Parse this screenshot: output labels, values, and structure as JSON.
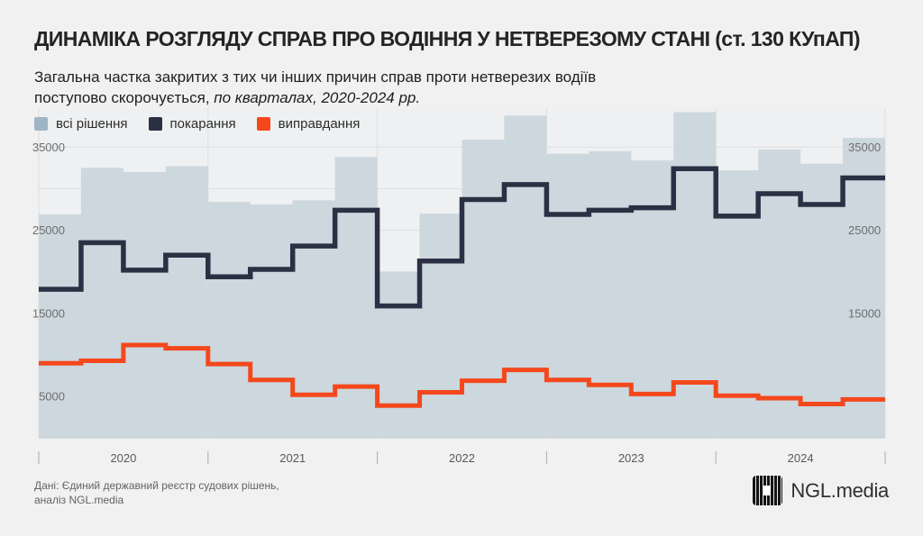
{
  "header": {
    "title": "ДИНАМІКА РОЗГЛЯДУ СПРАВ ПРО ВОДІННЯ У НЕТВЕРЕЗОМУ СТАНІ (ст. 130 КУпАП)",
    "subtitle_line1": "Загальна частка закритих з тих чи інших причин справ проти нетверезих водіїв",
    "subtitle_line2_regular": "поступово скорочується, ",
    "subtitle_line2_italic": "по кварталах, 2020-2024 рр."
  },
  "legend": {
    "items": [
      {
        "label": "всі рішення",
        "color": "#9db5c4"
      },
      {
        "label": "покарання",
        "color": "#2b3044"
      },
      {
        "label": "виправдання",
        "color": "#f4481c"
      }
    ]
  },
  "footer": {
    "source_line1": "Дані: Єдиний державний реєстр судових рішень,",
    "source_line2": "аналіз NGL.media",
    "logo_text": "NGL.media"
  },
  "chart_data": {
    "type": "area",
    "title": "Динаміка розгляду справ про водіння у нетверезому стані (ст. 130 КУпАП)",
    "xlabel": "",
    "ylabel": "",
    "ylim": [
      0,
      40000
    ],
    "gridline_step": 5000,
    "yticks_left": [
      35000,
      25000,
      15000,
      5000
    ],
    "yticks_right": [
      35000,
      25000,
      15000
    ],
    "x_tick_labels": [
      "2020",
      "2021",
      "2022",
      "2023",
      "2024"
    ],
    "categories": [
      "2020-Q1",
      "2020-Q2",
      "2020-Q3",
      "2020-Q4",
      "2021-Q1",
      "2021-Q2",
      "2021-Q3",
      "2021-Q4",
      "2022-Q1",
      "2022-Q2",
      "2022-Q3",
      "2022-Q4",
      "2023-Q1",
      "2023-Q2",
      "2023-Q3",
      "2023-Q4",
      "2024-Q1",
      "2024-Q2",
      "2024-Q3",
      "2024-Q4"
    ],
    "series": [
      {
        "name": "всі рішення",
        "type": "area",
        "color": "#cdd7de",
        "data_name": "area-all-decisions",
        "values": [
          26900,
          32500,
          32000,
          32700,
          28400,
          28100,
          28600,
          33800,
          20000,
          27000,
          35900,
          38800,
          34200,
          34500,
          33400,
          39200,
          32200,
          34700,
          33000,
          36100
        ]
      },
      {
        "name": "покарання",
        "type": "line",
        "color": "#2b3044",
        "stroke_width": 5.5,
        "data_name": "line-punishments",
        "values": [
          17900,
          23500,
          20200,
          22000,
          19400,
          20300,
          23100,
          27400,
          15900,
          21300,
          28700,
          30500,
          26900,
          27400,
          27700,
          32400,
          26700,
          29400,
          28100,
          31300
        ]
      },
      {
        "name": "виправдання",
        "type": "line",
        "color": "#f4481c",
        "stroke_width": 5,
        "data_name": "line-acquittals",
        "values": [
          9000,
          9300,
          11200,
          10800,
          8900,
          7000,
          5200,
          6200,
          3900,
          5500,
          6900,
          8200,
          7000,
          6400,
          5300,
          6700,
          5100,
          4800,
          4100,
          4650
        ]
      }
    ],
    "legend_position": "top-left",
    "grid": true
  }
}
